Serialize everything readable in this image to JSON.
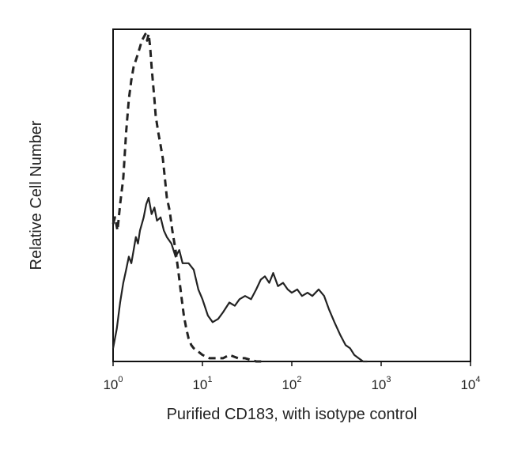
{
  "chart_data": {
    "type": "line",
    "title": "",
    "xlabel": "Purified CD183, with isotype control",
    "ylabel": "Relative Cell Number",
    "xscale": "log",
    "xlim": [
      1,
      10000
    ],
    "ylim": [
      0,
      100
    ],
    "x_ticks": [
      {
        "base": "10",
        "exp": "0",
        "value": 1
      },
      {
        "base": "10",
        "exp": "1",
        "value": 10
      },
      {
        "base": "10",
        "exp": "2",
        "value": 100
      },
      {
        "base": "10",
        "exp": "3",
        "value": 1000
      },
      {
        "base": "10",
        "exp": "4",
        "value": 10000
      }
    ],
    "series": [
      {
        "style": "solid",
        "color": "#222222",
        "x": [
          1.0,
          1.1,
          1.2,
          1.3,
          1.4,
          1.5,
          1.6,
          1.7,
          1.8,
          1.9,
          2.0,
          2.1,
          2.2,
          2.35,
          2.5,
          2.7,
          2.9,
          3.1,
          3.4,
          3.7,
          4.0,
          4.5,
          5.0,
          5.5,
          6.0,
          7.0,
          8.0,
          9.0,
          10.0,
          11.5,
          13.0,
          15.0,
          17.0,
          20.0,
          23.0,
          26.0,
          30.0,
          35.0,
          40.0,
          45.0,
          50.0,
          56.0,
          62.0,
          70.0,
          80.0,
          90.0,
          100.0,
          115.0,
          130.0,
          150.0,
          170.0,
          200.0,
          230.0,
          260.0,
          300.0,
          350.0,
          400.0,
          450.0,
          500.0,
          560.0,
          630.0,
          700.0
        ],
        "y": [
          4,
          10,
          18,
          24,
          28,
          32,
          30,
          34,
          38,
          36,
          40,
          42,
          44,
          48,
          50,
          45,
          47,
          43,
          44,
          40,
          38,
          36,
          32,
          34,
          30,
          30,
          28,
          22,
          19,
          14,
          12,
          13,
          15,
          18,
          17,
          19,
          20,
          19,
          22,
          25,
          26,
          24,
          27,
          23,
          24,
          22,
          21,
          22,
          20,
          21,
          20,
          22,
          20,
          16,
          12,
          8,
          5,
          4,
          2,
          1,
          0,
          0
        ]
      },
      {
        "style": "dashed",
        "color": "#222222",
        "x": [
          1.0,
          1.05,
          1.12,
          1.2,
          1.3,
          1.4,
          1.5,
          1.6,
          1.7,
          1.8,
          1.9,
          2.0,
          2.1,
          2.2,
          2.3,
          2.4,
          2.5,
          2.6,
          2.7,
          2.8,
          2.9,
          3.0,
          3.2,
          3.4,
          3.6,
          3.8,
          4.0,
          4.3,
          4.6,
          5.0,
          5.4,
          5.8,
          6.2,
          6.6,
          7.0,
          7.5,
          8.0,
          9.0,
          10.0,
          12.0,
          14.0,
          17.0,
          20.0,
          25.0,
          30.0,
          40.0,
          50.0
        ],
        "y": [
          42,
          44,
          40,
          48,
          56,
          70,
          80,
          86,
          90,
          92,
          94,
          96,
          98,
          99,
          100,
          98,
          100,
          96,
          90,
          85,
          80,
          75,
          70,
          66,
          62,
          56,
          50,
          46,
          40,
          34,
          27,
          20,
          14,
          10,
          7,
          5,
          4,
          3,
          2,
          1,
          1,
          1,
          2,
          1,
          1,
          0,
          0
        ]
      }
    ],
    "grid": false,
    "legend": "none"
  }
}
